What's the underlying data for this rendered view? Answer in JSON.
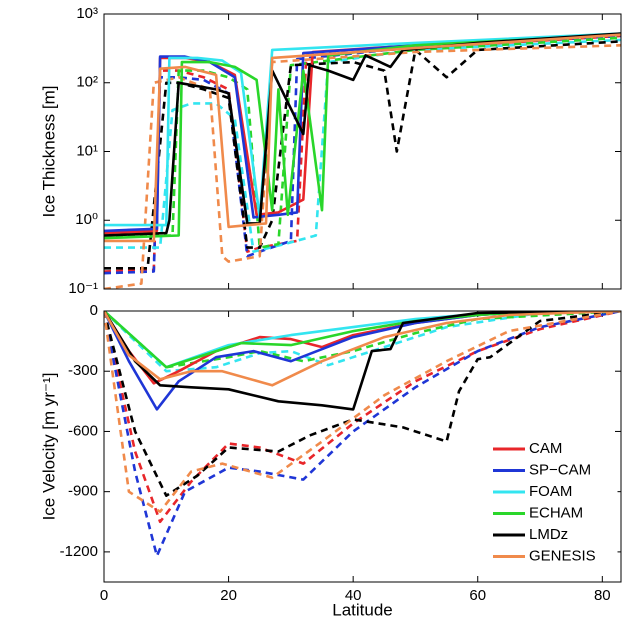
{
  "chart_data": [
    {
      "type": "line",
      "y_label": "Ice Thickness [m]",
      "log_y": true,
      "xlim": [
        0,
        83
      ],
      "xticks": [
        0,
        20,
        40,
        60,
        80
      ],
      "ylim": [
        0.1,
        1000
      ],
      "yticks": [
        {
          "value": 0.1,
          "label": "10⁻¹"
        },
        {
          "value": 1,
          "label": "10⁰"
        },
        {
          "value": 10,
          "label": "10¹"
        },
        {
          "value": 100,
          "label": "10²"
        },
        {
          "value": 1000,
          "label": "10³"
        }
      ],
      "series": [
        {
          "color": "#e8262a",
          "x": [
            0,
            8.5,
            9,
            13,
            17,
            21,
            24.5,
            28,
            32,
            33.5,
            50,
            70,
            83
          ],
          "values": [
            0.65,
            0.7,
            230,
            230,
            200,
            130,
            1.2,
            1.3,
            2,
            280,
            350,
            450,
            500
          ],
          "dashed_x": [
            0,
            8,
            9,
            12,
            16,
            20,
            23,
            25,
            31,
            32.5,
            50,
            83
          ],
          "dashed_values": [
            0.18,
            0.19,
            150,
            150,
            120,
            80,
            0.35,
            0.4,
            0.5,
            250,
            320,
            480
          ]
        },
        {
          "color": "#1f36d6",
          "x": [
            0,
            8.5,
            9,
            13,
            17,
            21,
            24,
            28,
            31,
            32,
            50,
            83
          ],
          "values": [
            0.7,
            0.75,
            240,
            240,
            200,
            120,
            1.1,
            1.2,
            1.3,
            270,
            350,
            500
          ],
          "dashed_x": [
            0,
            8,
            9,
            12,
            16,
            20,
            23,
            25,
            30,
            31,
            50,
            83
          ],
          "dashed_values": [
            0.17,
            0.18,
            120,
            120,
            110,
            70,
            0.3,
            0.35,
            0.5,
            220,
            330,
            480
          ]
        },
        {
          "color": "#33e5f0",
          "x": [
            0,
            10,
            10.5,
            15,
            19,
            22,
            25,
            27,
            50,
            83
          ],
          "values": [
            0.85,
            0.85,
            230,
            230,
            210,
            140,
            1.1,
            300,
            380,
            520
          ],
          "dashed_x": [
            0,
            9,
            11,
            14,
            18,
            21,
            24,
            29,
            34,
            36,
            50,
            83
          ],
          "dashed_values": [
            0.4,
            0.4,
            40,
            50,
            50,
            30,
            0.35,
            0.45,
            0.6,
            200,
            300,
            420
          ]
        },
        {
          "color": "#2ad62a",
          "x": [
            0,
            12,
            12.5,
            17,
            21,
            24.5,
            27,
            28,
            29.5,
            32,
            35,
            36,
            50,
            83
          ],
          "values": [
            0.55,
            0.6,
            200,
            200,
            170,
            110,
            1.4,
            80,
            1.2,
            150,
            1.4,
            250,
            350,
            500
          ],
          "dashed_x": [
            0,
            11,
            12,
            16,
            20,
            23,
            25,
            28,
            30,
            50,
            83
          ],
          "dashed_values": [
            0.6,
            0.6,
            150,
            150,
            120,
            80,
            0.4,
            0.45,
            180,
            300,
            450
          ]
        },
        {
          "color": "#000000",
          "x": [
            0,
            10,
            10.5,
            12,
            18,
            20,
            23,
            25,
            27,
            32,
            33,
            36,
            40,
            42,
            46,
            48,
            60,
            83
          ],
          "values": [
            0.6,
            0.65,
            1,
            100,
            80,
            70,
            0.9,
            0.9,
            150,
            18,
            180,
            150,
            110,
            250,
            170,
            300,
            380,
            520
          ],
          "dashed_x": [
            0,
            7,
            10,
            12,
            16,
            20,
            23,
            25,
            27,
            30,
            40,
            45,
            47,
            50,
            55,
            60,
            83
          ],
          "dashed_values": [
            0.2,
            0.2,
            100,
            100,
            80,
            60,
            0.4,
            0.4,
            1,
            180,
            200,
            150,
            10,
            300,
            120,
            300,
            400
          ]
        },
        {
          "color": "#f08a4b",
          "x": [
            0,
            8,
            9,
            13,
            18,
            20,
            26,
            27,
            50,
            83
          ],
          "values": [
            0.5,
            0.5,
            160,
            170,
            130,
            0.8,
            0.9,
            230,
            320,
            500
          ],
          "dashed_x": [
            0,
            6,
            8,
            12,
            17,
            19,
            20,
            25,
            27,
            50,
            83
          ],
          "dashed_values": [
            0.1,
            0.12,
            100,
            120,
            80,
            0.3,
            0.25,
            0.3,
            200,
            280,
            350
          ]
        }
      ]
    },
    {
      "type": "line",
      "y_label": "Ice Velocity [m yr⁻¹]",
      "x_label": "Latitude",
      "xlim": [
        0,
        83
      ],
      "xticks": [
        0,
        20,
        40,
        60,
        80
      ],
      "ylim": [
        -1350,
        0
      ],
      "yticks": [
        -1200,
        -900,
        -600,
        -300,
        0
      ],
      "legend": "lower right",
      "series": [
        {
          "name": "CAM",
          "color": "#e8262a",
          "x": [
            0,
            4,
            8,
            12,
            18,
            25,
            30,
            35,
            40,
            50,
            60,
            70,
            83
          ],
          "values": [
            0,
            -200,
            -360,
            -300,
            -200,
            -130,
            -140,
            -180,
            -120,
            -60,
            -20,
            0,
            0
          ],
          "dashed_x": [
            0,
            5,
            9,
            14,
            20,
            25,
            32,
            40,
            50,
            60,
            70,
            83
          ],
          "dashed_values": [
            0,
            -700,
            -1050,
            -850,
            -660,
            -680,
            -760,
            -560,
            -350,
            -200,
            -90,
            0
          ]
        },
        {
          "name": "SP−CAM",
          "color": "#1f36d6",
          "x": [
            0,
            4,
            8.5,
            12,
            18,
            24,
            30,
            40,
            50,
            60,
            70,
            83
          ],
          "values": [
            0,
            -250,
            -490,
            -350,
            -230,
            -200,
            -250,
            -130,
            -60,
            -20,
            0,
            0
          ],
          "dashed_x": [
            0,
            5,
            8.5,
            13,
            20,
            25,
            32,
            40,
            50,
            60,
            70,
            83
          ],
          "dashed_values": [
            0,
            -800,
            -1220,
            -900,
            -780,
            -800,
            -840,
            -600,
            -380,
            -200,
            -80,
            0
          ]
        },
        {
          "name": "FOAM",
          "color": "#33e5f0",
          "x": [
            0,
            10,
            20,
            30,
            40,
            50,
            60,
            70,
            83
          ],
          "values": [
            0,
            -280,
            -170,
            -120,
            -80,
            -40,
            -15,
            0,
            0
          ],
          "dashed_x": [
            0,
            10,
            18,
            25,
            30,
            36,
            45,
            55,
            70,
            83
          ],
          "dashed_values": [
            0,
            -300,
            -280,
            -210,
            -200,
            -270,
            -180,
            -80,
            -10,
            0
          ]
        },
        {
          "name": "ECHAM",
          "color": "#2ad62a",
          "x": [
            0,
            10,
            15,
            22,
            30,
            40,
            50,
            60,
            70,
            83
          ],
          "values": [
            0,
            -280,
            -230,
            -160,
            -170,
            -100,
            -50,
            -20,
            0,
            0
          ],
          "dashed_x": [
            0,
            10,
            20,
            25,
            32,
            40,
            50,
            60,
            83
          ],
          "dashed_values": [
            0,
            -280,
            -230,
            -200,
            -250,
            -200,
            -110,
            -40,
            0
          ]
        },
        {
          "name": "LMDz",
          "color": "#000000",
          "x": [
            0,
            5,
            9,
            14,
            20,
            28,
            35,
            40,
            43,
            46,
            48,
            60,
            83
          ],
          "values": [
            0,
            -250,
            -370,
            -380,
            -390,
            -450,
            -470,
            -490,
            -200,
            -190,
            -60,
            -10,
            0
          ],
          "dashed_x": [
            0,
            5,
            10,
            15,
            20,
            28,
            33,
            40,
            48,
            55,
            57,
            60,
            62,
            70,
            83
          ],
          "dashed_values": [
            0,
            -600,
            -920,
            -820,
            -680,
            -700,
            -620,
            -540,
            -580,
            -650,
            -400,
            -240,
            -230,
            -50,
            0
          ]
        },
        {
          "name": "GENESIS",
          "color": "#f08a4b",
          "x": [
            0,
            4,
            9,
            14,
            19,
            27,
            35,
            45,
            55,
            65,
            83
          ],
          "values": [
            0,
            -220,
            -340,
            -300,
            -300,
            -370,
            -250,
            -130,
            -60,
            -20,
            0
          ],
          "dashed_x": [
            0,
            4,
            9,
            14,
            19,
            27,
            35,
            45,
            55,
            65,
            83
          ],
          "dashed_values": [
            0,
            -900,
            -1000,
            -800,
            -760,
            -830,
            -650,
            -420,
            -250,
            -100,
            0
          ]
        }
      ]
    }
  ]
}
